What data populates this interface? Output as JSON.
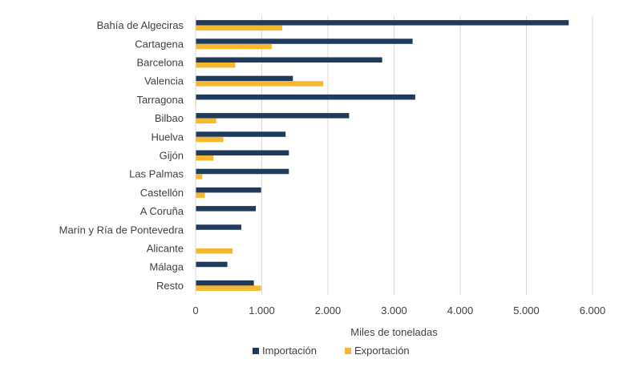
{
  "chart_data": {
    "type": "bar",
    "orientation": "horizontal",
    "categories": [
      "Bahía de Algeciras",
      "Cartagena",
      "Barcelona",
      "Valencia",
      "Tarragona",
      "Bilbao",
      "Huelva",
      "Gijón",
      "Las Palmas",
      "Castellón",
      "A Coruña",
      "Marín y Ría de Pontevedra",
      "Alicante",
      "Málaga",
      "Resto"
    ],
    "series": [
      {
        "name": "Importación",
        "color": "#1f3b5c",
        "values": [
          5640,
          3280,
          2820,
          1470,
          3320,
          2320,
          1360,
          1410,
          1410,
          990,
          910,
          690,
          0,
          480,
          880
        ]
      },
      {
        "name": "Exportación",
        "color": "#f5b82e",
        "values": [
          1310,
          1150,
          600,
          1930,
          10,
          310,
          420,
          270,
          100,
          140,
          0,
          0,
          560,
          0,
          990
        ]
      }
    ],
    "xlabel": "Miles de toneladas",
    "xlim": [
      0,
      6000
    ],
    "xticks": [
      0,
      1000,
      2000,
      3000,
      4000,
      5000,
      6000
    ],
    "xtick_labels": [
      "0",
      "1.000",
      "2.000",
      "3.000",
      "4.000",
      "5.000",
      "6.000"
    ],
    "grid": "vertical",
    "legend": "bottom"
  }
}
